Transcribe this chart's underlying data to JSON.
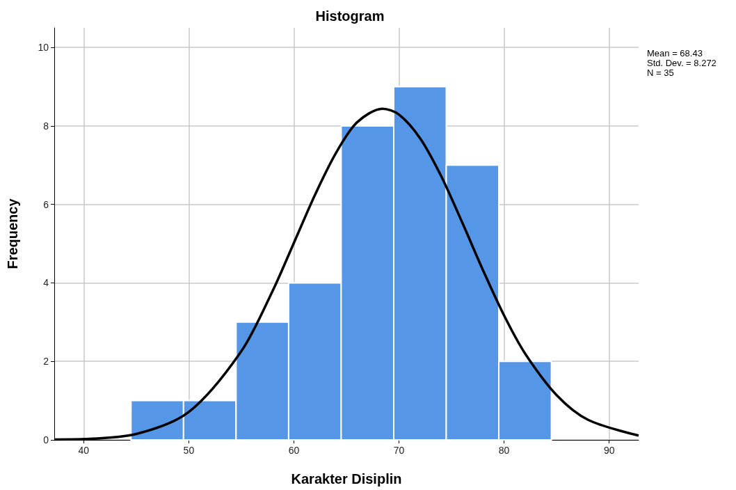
{
  "chart_data": {
    "type": "histogram",
    "title": "Histogram",
    "xlabel": "Karakter Disiplin",
    "ylabel": "Frequency",
    "bins": [
      44.5,
      49.5,
      54.5,
      59.5,
      64.5,
      69.5,
      74.5,
      79.5,
      84.5
    ],
    "values": [
      1,
      1,
      3,
      4,
      8,
      9,
      7,
      2
    ],
    "color": "#5596e6",
    "series": [
      {
        "type": "line",
        "color": "#000000",
        "x": [
          37.2,
          40,
          45,
          50,
          55,
          58,
          60,
          62,
          64,
          66,
          68.43,
          70,
          72,
          74,
          76,
          78,
          80,
          82,
          85,
          88,
          92.8
        ],
        "values": [
          0.01,
          0.02,
          0.15,
          0.71,
          2.26,
          3.81,
          5.02,
          6.24,
          7.31,
          8.09,
          8.44,
          8.29,
          7.69,
          6.73,
          5.55,
          4.32,
          3.17,
          2.2,
          1.14,
          0.51,
          0.11
        ]
      }
    ],
    "marker": "none",
    "line_style": "solid",
    "xlim": [
      37.2,
      92.8
    ],
    "xticks": [
      40,
      50,
      60,
      70,
      80,
      90
    ],
    "ylim": [
      0,
      10.5
    ],
    "yticks": [
      0,
      2,
      4,
      6,
      8,
      10
    ],
    "grid": true,
    "annotations": [
      "Mean = 68.43",
      "Std. Dev. = 8.272",
      "N = 35"
    ]
  }
}
